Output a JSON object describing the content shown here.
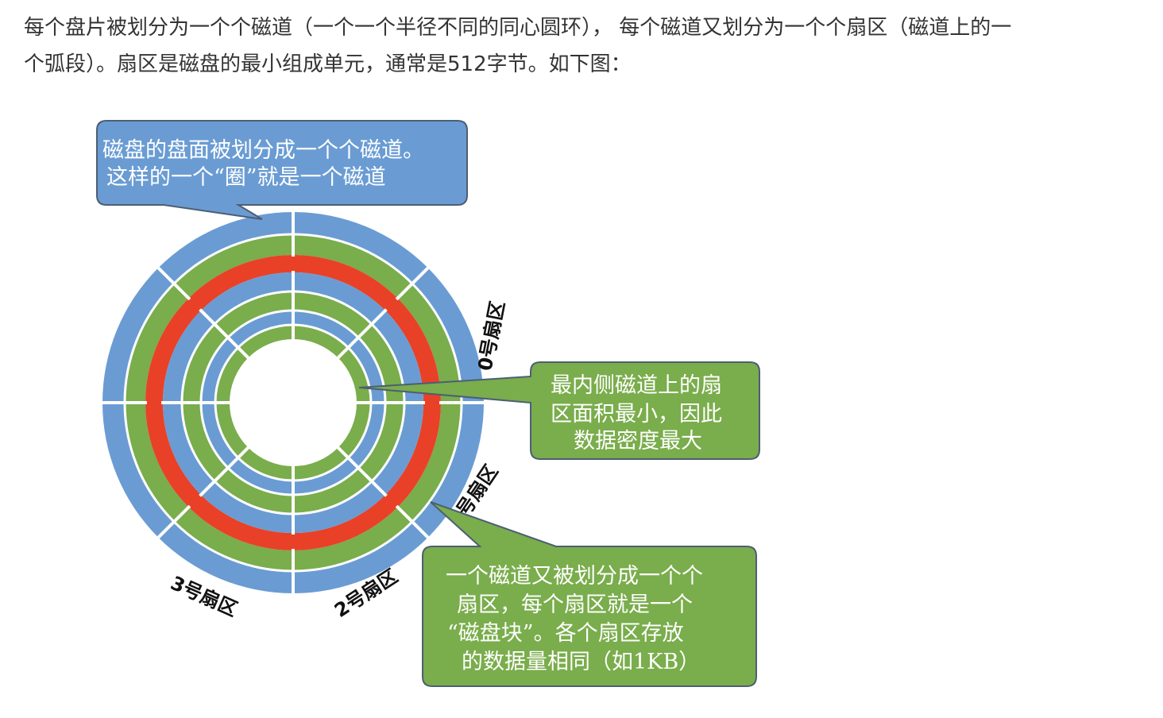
{
  "intro": {
    "line1": "每个盘片被划分为一个个磁道（一个一个半径不同的同心圆环），  每个磁道又划分为一个个扇区（磁道上的一",
    "line2": "个弧段）。扇区是磁盘的最小组成单元，通常是512字节。如下图："
  },
  "diagram": {
    "colors": {
      "blue_track": "#6a9cd3",
      "green_track": "#7aad4c",
      "highlight_track": "#e84128",
      "callout_blue": "#6a9cd3",
      "callout_green": "#7aad4c",
      "callout_border": "#4d5e73"
    },
    "callout_track": {
      "line1": "磁盘的盘面被划分成一个个磁道。",
      "line2": "这样的一个“圈”就是一个磁道"
    },
    "callout_inner": {
      "line1": "最内侧磁道上的扇",
      "line2": "区面积最小，因此",
      "line3": "数据密度最大"
    },
    "callout_sector": {
      "line1": "一个磁道又被划分成一个个",
      "line2": "扇区，每个扇区就是一个",
      "line3": "“磁盘块”。各个扇区存放",
      "line4": "的数据量相同（如1KB）"
    },
    "sector_labels": {
      "s0": "0号扇区",
      "s1": "1号扇区",
      "s2": "2号扇区",
      "s3": "3号扇区"
    }
  }
}
